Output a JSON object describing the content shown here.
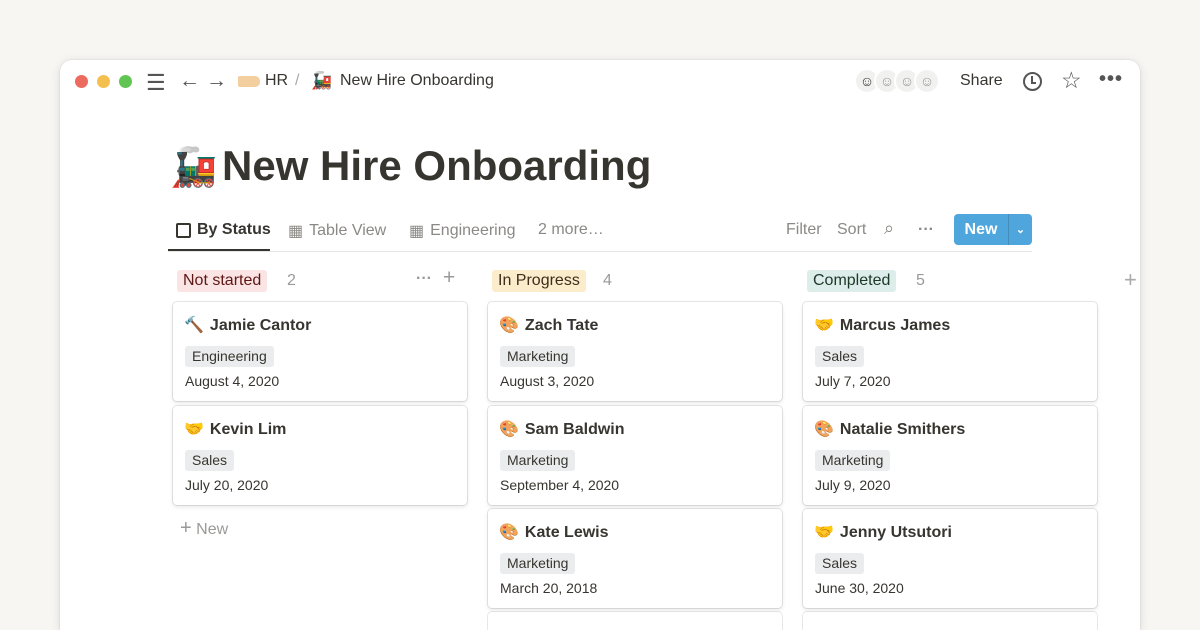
{
  "topbar": {
    "breadcrumb": [
      {
        "icon": "tag",
        "label": "HR"
      },
      {
        "icon": "locomotive",
        "label": "New Hire Onboarding"
      }
    ],
    "separator": "/",
    "share_label": "Share",
    "avatar_count": 4
  },
  "page": {
    "emoji": "🚂",
    "title": "New Hire Onboarding"
  },
  "views": {
    "tabs": [
      {
        "icon": "board",
        "label": "By Status"
      },
      {
        "icon": "table",
        "label": "Table View"
      },
      {
        "icon": "table",
        "label": "Engineering"
      }
    ],
    "more": "2 more…",
    "filter": "Filter",
    "sort": "Sort",
    "new_label": "New"
  },
  "columns": [
    {
      "label": "Not started",
      "count": "2",
      "color": "#fbe4e4",
      "text_color": "#5d1715",
      "cards": [
        {
          "emoji": "🔨",
          "name": "Jamie Cantor",
          "tag": "Engineering",
          "date": "August 4, 2020"
        },
        {
          "emoji": "🤝",
          "name": "Kevin Lim",
          "tag": "Sales",
          "date": "July 20, 2020"
        }
      ],
      "add_label": "New"
    },
    {
      "label": "In Progress",
      "count": "4",
      "color": "#fbeccc",
      "text_color": "#402c1b",
      "cards": [
        {
          "emoji": "🎨",
          "name": "Zach Tate",
          "tag": "Marketing",
          "date": "August 3, 2020"
        },
        {
          "emoji": "🎨",
          "name": "Sam Baldwin",
          "tag": "Marketing",
          "date": "September 4, 2020"
        },
        {
          "emoji": "🎨",
          "name": "Kate Lewis",
          "tag": "Marketing",
          "date": "March 20, 2018"
        }
      ]
    },
    {
      "label": "Completed",
      "count": "5",
      "color": "#ddedea",
      "text_color": "#1c3829",
      "cards": [
        {
          "emoji": "🤝",
          "name": "Marcus James",
          "tag": "Sales",
          "date": "July 7, 2020"
        },
        {
          "emoji": "🎨",
          "name": "Natalie Smithers",
          "tag": "Marketing",
          "date": "July 9, 2020"
        },
        {
          "emoji": "🤝",
          "name": "Jenny Utsutori",
          "tag": "Sales",
          "date": "June 30, 2020"
        }
      ]
    }
  ]
}
